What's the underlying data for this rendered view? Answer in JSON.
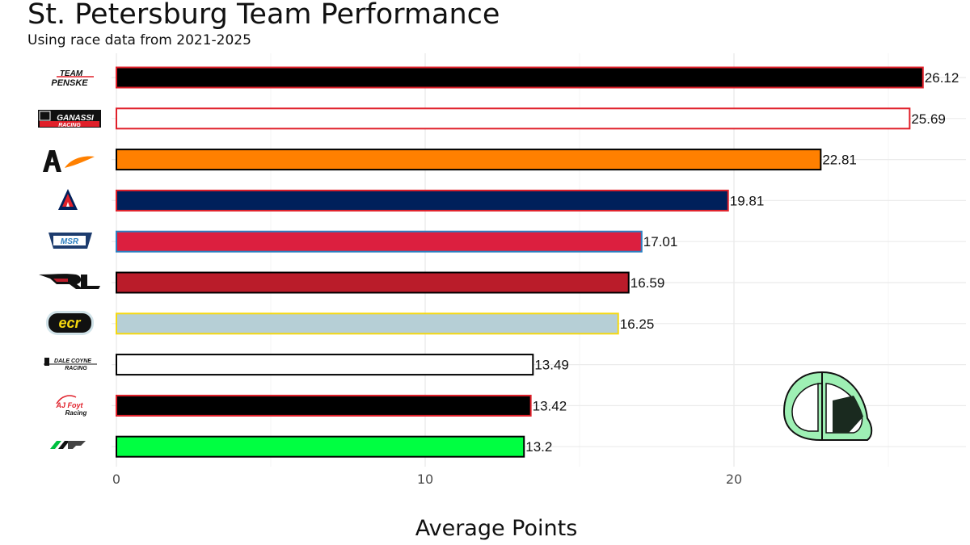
{
  "chart_data": {
    "type": "bar",
    "orientation": "horizontal",
    "title": "St. Petersburg Team Performance",
    "subtitle": "Using race data from 2021-2025",
    "xlabel": "Average Points",
    "ylabel": "",
    "xlim": [
      0,
      27.2
    ],
    "xticks": [
      0,
      10,
      20
    ],
    "grid": true,
    "categories": [
      "Team Penske",
      "Chip Ganassi Racing",
      "Arrow McLaren",
      "Andretti",
      "Meyer Shank Racing",
      "Rahal Letterman Lanigan",
      "Ed Carpenter Racing",
      "Dale Coyne Racing",
      "AJ Foyt Racing",
      "Juncos Hollinger Racing"
    ],
    "values": [
      26.12,
      25.69,
      22.81,
      19.81,
      17.01,
      16.59,
      16.25,
      13.49,
      13.42,
      13.2
    ],
    "value_labels": [
      "26.12",
      "25.69",
      "22.81",
      "19.81",
      "17.01",
      "16.59",
      "16.25",
      "13.49",
      "13.42",
      "13.2"
    ],
    "fill_colors": [
      "#000000",
      "#ffffff",
      "#ff8000",
      "#00205b",
      "#dc1f3f",
      "#ba1c2a",
      "#b6cfd6",
      "#ffffff",
      "#000000",
      "#00ff41"
    ],
    "outline_colors": [
      "#e0202a",
      "#e0202a",
      "#000000",
      "#e0202a",
      "#2d7fc1",
      "#000000",
      "#f5d80f",
      "#000000",
      "#e0202a",
      "#000000"
    ],
    "logo_texts": {
      "penske": [
        "TEAM",
        "PENSKE"
      ],
      "ganassi": [
        "GANASSI",
        "RACING"
      ],
      "msr": [
        "MSR"
      ],
      "ecr": [
        "ecr"
      ],
      "coyne": [
        "DALE COYNE",
        "RACING"
      ],
      "foyt": [
        "AJ Foyt",
        "Racing"
      ]
    }
  }
}
